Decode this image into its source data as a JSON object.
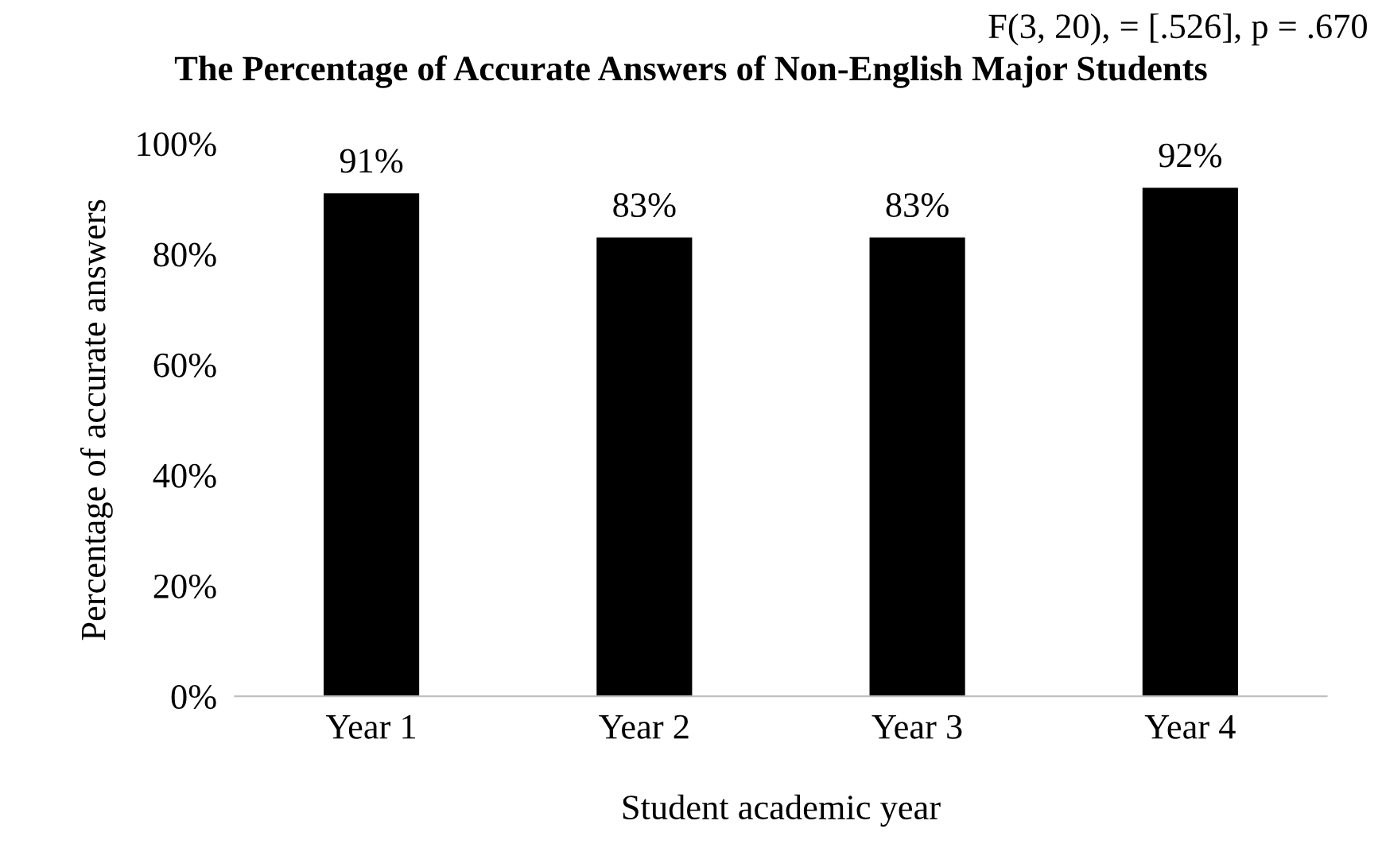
{
  "chart_data": {
    "type": "bar",
    "title": "The Percentage of Accurate Answers of Non-English Major Students",
    "xlabel": "Student academic year",
    "ylabel": "Percentage of accurate answers",
    "annotations": [
      "F(3, 20), = [.526], p = .670"
    ],
    "categories": [
      "Year 1",
      "Year 2",
      "Year 3",
      "Year 4"
    ],
    "values": [
      91,
      83,
      83,
      92
    ],
    "value_labels": [
      "91%",
      "83%",
      "83%",
      "92%"
    ],
    "color": "#000000",
    "ylim": [
      0,
      100
    ],
    "yticks": [
      {
        "value": 0,
        "label": "0%"
      },
      {
        "value": 20,
        "label": "20%"
      },
      {
        "value": 40,
        "label": "40%"
      },
      {
        "value": 60,
        "label": "60%"
      },
      {
        "value": 80,
        "label": "80%"
      },
      {
        "value": 100,
        "label": "100%"
      }
    ],
    "grid": false
  }
}
